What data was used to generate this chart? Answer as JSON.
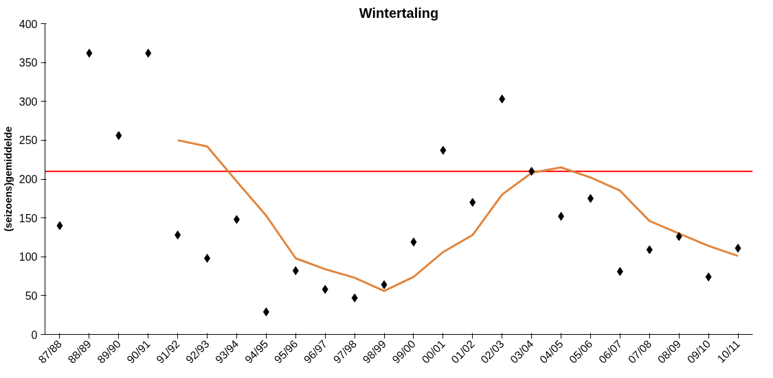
{
  "chart_data": {
    "type": "scatter",
    "title": "Wintertaling",
    "ylabel": "(seizoens)gemiddelde",
    "categories": [
      "87/88",
      "88/89",
      "89/90",
      "90/91",
      "91/92",
      "92/93",
      "93/94",
      "94/95",
      "95/96",
      "96/97",
      "97/98",
      "98/99",
      "99/00",
      "00/01",
      "01/02",
      "02/03",
      "03/04",
      "04/05",
      "05/06",
      "06/07",
      "07/08",
      "08/09",
      "09/10",
      "10/11"
    ],
    "series": [
      {
        "color": "#000000",
        "marker": "diamond",
        "values": [
          140,
          362,
          256,
          362,
          128,
          98,
          148,
          29,
          82,
          58,
          47,
          64,
          119,
          237,
          170,
          303,
          210,
          152,
          175,
          81,
          109,
          126,
          74,
          111
        ]
      },
      {
        "type": "line",
        "color": "#e0843c",
        "values": [
          null,
          null,
          null,
          null,
          250,
          242,
          197,
          153,
          98,
          84,
          73,
          56,
          74,
          106,
          128,
          180,
          208,
          215,
          202,
          185,
          146,
          130,
          114,
          101
        ]
      }
    ],
    "ref_lines": [
      {
        "axis": "y",
        "value": 210,
        "color": "#ff0000"
      }
    ],
    "ylim": [
      0,
      400
    ],
    "yticks": [
      0,
      50,
      100,
      150,
      200,
      250,
      300,
      350,
      400
    ],
    "grid": false
  }
}
